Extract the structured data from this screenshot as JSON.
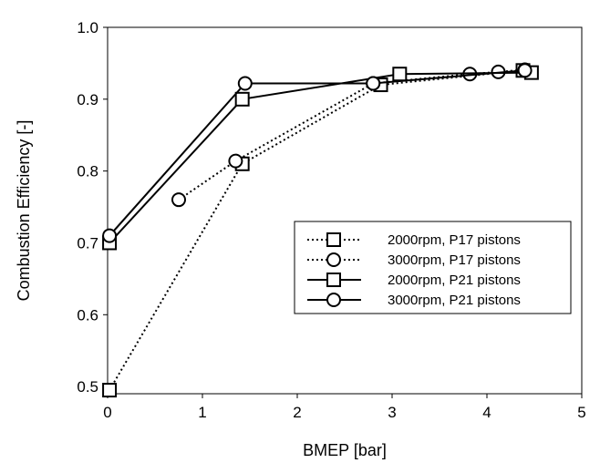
{
  "chart_data": {
    "type": "line",
    "title": "",
    "xlabel": "BMEP [bar]",
    "ylabel": "Combustion Efficiency [-]",
    "xlim": [
      0,
      5
    ],
    "ylim": [
      0.49,
      1.0
    ],
    "xticks": [
      "0",
      "1",
      "2",
      "3",
      "4",
      "5"
    ],
    "yticks": [
      "0.5",
      "0.6",
      "0.7",
      "0.8",
      "0.9",
      "1.0"
    ],
    "grid": false,
    "legend_position": "center-right",
    "series": [
      {
        "name": "2000rpm, P17 pistons",
        "marker": "square",
        "dash": "dotted",
        "x": [
          0.02,
          1.42,
          2.88,
          4.38
        ],
        "y": [
          0.495,
          0.81,
          0.92,
          0.94
        ]
      },
      {
        "name": "3000rpm, P17 pistons",
        "marker": "circle",
        "dash": "dotted",
        "x": [
          0.75,
          1.35,
          2.8,
          3.82,
          4.12,
          4.4
        ],
        "y": [
          0.76,
          0.814,
          0.922,
          0.935,
          0.938,
          0.941
        ]
      },
      {
        "name": "2000rpm, P21 pistons",
        "marker": "square",
        "dash": "solid",
        "x": [
          0.02,
          1.42,
          3.08,
          4.47
        ],
        "y": [
          0.7,
          0.9,
          0.935,
          0.937
        ]
      },
      {
        "name": "3000rpm, P21 pistons",
        "marker": "circle",
        "dash": "solid",
        "x": [
          0.02,
          1.45,
          2.8,
          4.4
        ],
        "y": [
          0.71,
          0.922,
          0.922,
          0.94
        ]
      }
    ]
  }
}
